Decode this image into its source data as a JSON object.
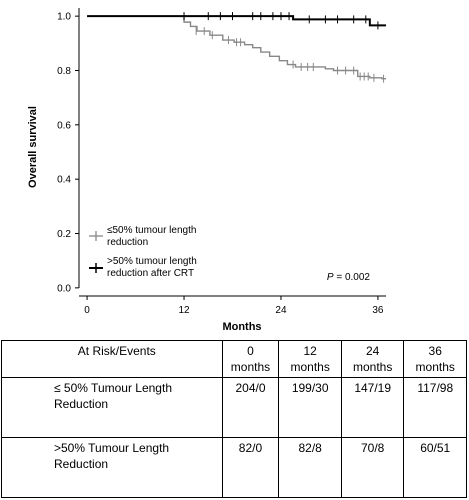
{
  "chart_data": {
    "type": "line",
    "chart_subtype": "kaplan-meier step plot",
    "title": "",
    "xlabel": "Months",
    "ylabel": "Overall survival",
    "xlim": [
      -1,
      37
    ],
    "ylim": [
      -0.03,
      1.03
    ],
    "x_ticks": [
      0,
      12,
      24,
      36
    ],
    "y_ticks": [
      0.0,
      0.2,
      0.4,
      0.6,
      0.8,
      1.0
    ],
    "y_tick_labels": [
      "0.0",
      "0.2",
      "0.4",
      "0.6",
      "0.8",
      "1.0"
    ],
    "grid": false,
    "legend_position": "bottom-left",
    "annotation": {
      "label": "P",
      "value": "= 0.002"
    },
    "series": [
      {
        "name": "≤50% tumour length reduction",
        "legend_lines": [
          "≤50% tumour length",
          "reduction"
        ],
        "color": "#888888",
        "steps": [
          [
            0,
            1.0
          ],
          [
            12,
            0.978
          ],
          [
            12.8,
            0.962
          ],
          [
            13.6,
            0.945
          ],
          [
            15.2,
            0.93
          ],
          [
            16.8,
            0.912
          ],
          [
            18.2,
            0.904
          ],
          [
            19.5,
            0.895
          ],
          [
            20.5,
            0.884
          ],
          [
            21.5,
            0.868
          ],
          [
            22.6,
            0.852
          ],
          [
            23.8,
            0.836
          ],
          [
            24.8,
            0.822
          ],
          [
            25.8,
            0.813
          ],
          [
            29.5,
            0.806
          ],
          [
            30.5,
            0.8
          ],
          [
            33.5,
            0.778
          ],
          [
            35,
            0.773
          ],
          [
            36.5,
            0.77
          ]
        ],
        "end_x": 37,
        "censored": [
          [
            13.5,
            0.945
          ],
          [
            14.5,
            0.945
          ],
          [
            15.5,
            0.93
          ],
          [
            17.5,
            0.912
          ],
          [
            18.5,
            0.904
          ],
          [
            19,
            0.904
          ],
          [
            25.5,
            0.822
          ],
          [
            26.5,
            0.813
          ],
          [
            27.3,
            0.813
          ],
          [
            28,
            0.813
          ],
          [
            31,
            0.8
          ],
          [
            32,
            0.8
          ],
          [
            33,
            0.8
          ],
          [
            33.8,
            0.778
          ],
          [
            34.3,
            0.778
          ],
          [
            34.8,
            0.778
          ],
          [
            35.5,
            0.773
          ],
          [
            36.7,
            0.77
          ]
        ]
      },
      {
        "name": ">50% tumour length reduction after CRT",
        "legend_lines": [
          ">50% tumour length",
          "reduction after CRT"
        ],
        "color": "#000000",
        "steps": [
          [
            0,
            1.0
          ],
          [
            25.5,
            0.988
          ],
          [
            35,
            0.966
          ]
        ],
        "end_x": 37,
        "censored": [
          [
            12,
            1.0
          ],
          [
            15,
            1.0
          ],
          [
            16.5,
            1.0
          ],
          [
            18,
            1.0
          ],
          [
            20.5,
            1.0
          ],
          [
            21.5,
            1.0
          ],
          [
            23,
            1.0
          ],
          [
            24,
            1.0
          ],
          [
            25,
            1.0
          ],
          [
            27.5,
            0.988
          ],
          [
            29.5,
            0.988
          ],
          [
            31,
            0.988
          ],
          [
            33,
            0.988
          ],
          [
            34.5,
            0.988
          ],
          [
            36,
            0.966
          ]
        ]
      }
    ]
  },
  "risk_table": {
    "header": [
      "At Risk/Events",
      "0 months",
      "12 months",
      "24 months",
      "36 months"
    ],
    "rows": [
      {
        "label": "≤ 50% Tumour Length Reduction",
        "values": [
          "204/0",
          "199/30",
          "147/19",
          "117/98"
        ]
      },
      {
        "label": ">50% Tumour Length Reduction",
        "values": [
          "82/0",
          "82/8",
          "70/8",
          "60/51"
        ]
      }
    ]
  }
}
